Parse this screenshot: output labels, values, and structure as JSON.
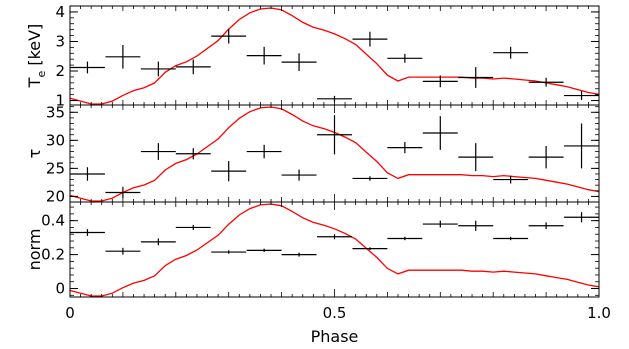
{
  "chart_data": {
    "type": "scatter",
    "shared_x": {
      "label": "Phase",
      "lim": [
        0,
        1.0
      ],
      "ticks": [
        0,
        0.5,
        1.0
      ],
      "tick_labels": [
        "0",
        "0.5",
        "1.0"
      ]
    },
    "overlay_color": "#ff0000",
    "marker_color": "#000000",
    "panels": [
      {
        "ylabel": "T",
        "ylabel_sub": "e",
        "ylabel_rest": " [keV]",
        "ylim": [
          0.85,
          4.2
        ],
        "yticks": [
          1,
          2,
          3,
          4
        ],
        "ytick_labels": [
          "1",
          "2",
          "3",
          "4"
        ],
        "points": [
          {
            "x": 0.033,
            "xerr": 0.033,
            "y": 2.12,
            "yerr": 0.2
          },
          {
            "x": 0.1,
            "xerr": 0.033,
            "y": 2.48,
            "yerr": 0.4
          },
          {
            "x": 0.167,
            "xerr": 0.033,
            "y": 2.07,
            "yerr": 0.25
          },
          {
            "x": 0.233,
            "xerr": 0.033,
            "y": 2.14,
            "yerr": 0.25
          },
          {
            "x": 0.3,
            "xerr": 0.033,
            "y": 3.18,
            "yerr": 0.25
          },
          {
            "x": 0.367,
            "xerr": 0.033,
            "y": 2.52,
            "yerr": 0.3
          },
          {
            "x": 0.433,
            "xerr": 0.033,
            "y": 2.3,
            "yerr": 0.3
          },
          {
            "x": 0.5,
            "xerr": 0.033,
            "y": 1.06,
            "yerr": 0.1
          },
          {
            "x": 0.567,
            "xerr": 0.033,
            "y": 3.08,
            "yerr": 0.25
          },
          {
            "x": 0.633,
            "xerr": 0.033,
            "y": 2.43,
            "yerr": 0.15
          },
          {
            "x": 0.7,
            "xerr": 0.033,
            "y": 1.65,
            "yerr": 0.2
          },
          {
            "x": 0.767,
            "xerr": 0.033,
            "y": 1.78,
            "yerr": 0.35
          },
          {
            "x": 0.833,
            "xerr": 0.033,
            "y": 2.62,
            "yerr": 0.2
          },
          {
            "x": 0.9,
            "xerr": 0.033,
            "y": 1.62,
            "yerr": 0.15
          },
          {
            "x": 0.967,
            "xerr": 0.033,
            "y": 1.17,
            "yerr": 0.15
          }
        ]
      },
      {
        "ylabel": "τ",
        "ylim": [
          19.0,
          36.3
        ],
        "yticks": [
          20,
          25,
          30,
          35
        ],
        "ytick_labels": [
          "20",
          "25",
          "30",
          "35"
        ],
        "points": [
          {
            "x": 0.033,
            "xerr": 0.033,
            "y": 24.0,
            "yerr": 1.2
          },
          {
            "x": 0.1,
            "xerr": 0.033,
            "y": 20.7,
            "yerr": 1.0
          },
          {
            "x": 0.167,
            "xerr": 0.033,
            "y": 28.0,
            "yerr": 1.5
          },
          {
            "x": 0.233,
            "xerr": 0.033,
            "y": 27.6,
            "yerr": 1.0
          },
          {
            "x": 0.3,
            "xerr": 0.033,
            "y": 24.5,
            "yerr": 1.8
          },
          {
            "x": 0.367,
            "xerr": 0.033,
            "y": 28.0,
            "yerr": 1.2
          },
          {
            "x": 0.433,
            "xerr": 0.033,
            "y": 23.8,
            "yerr": 1.0
          },
          {
            "x": 0.5,
            "xerr": 0.033,
            "y": 31.0,
            "yerr": 3.5
          },
          {
            "x": 0.567,
            "xerr": 0.033,
            "y": 23.2,
            "yerr": 0.4
          },
          {
            "x": 0.633,
            "xerr": 0.033,
            "y": 28.7,
            "yerr": 1.0
          },
          {
            "x": 0.7,
            "xerr": 0.033,
            "y": 31.3,
            "yerr": 3.0
          },
          {
            "x": 0.767,
            "xerr": 0.033,
            "y": 27.0,
            "yerr": 2.5
          },
          {
            "x": 0.833,
            "xerr": 0.033,
            "y": 23.0,
            "yerr": 0.7
          },
          {
            "x": 0.9,
            "xerr": 0.033,
            "y": 27.0,
            "yerr": 2.0
          },
          {
            "x": 0.967,
            "xerr": 0.033,
            "y": 29.0,
            "yerr": 4.0
          }
        ]
      },
      {
        "ylabel": "norm",
        "ylim": [
          -0.05,
          0.51
        ],
        "yticks": [
          0,
          0.2,
          0.4
        ],
        "ytick_labels": [
          "0",
          "0.2",
          "0.4"
        ],
        "points": [
          {
            "x": 0.033,
            "xerr": 0.033,
            "y": 0.33,
            "yerr": 0.02
          },
          {
            "x": 0.1,
            "xerr": 0.033,
            "y": 0.22,
            "yerr": 0.02
          },
          {
            "x": 0.167,
            "xerr": 0.033,
            "y": 0.275,
            "yerr": 0.02
          },
          {
            "x": 0.233,
            "xerr": 0.033,
            "y": 0.36,
            "yerr": 0.015
          },
          {
            "x": 0.3,
            "xerr": 0.033,
            "y": 0.215,
            "yerr": 0.01
          },
          {
            "x": 0.367,
            "xerr": 0.033,
            "y": 0.225,
            "yerr": 0.01
          },
          {
            "x": 0.433,
            "xerr": 0.033,
            "y": 0.2,
            "yerr": 0.012
          },
          {
            "x": 0.5,
            "xerr": 0.033,
            "y": 0.305,
            "yerr": 0.015
          },
          {
            "x": 0.567,
            "xerr": 0.033,
            "y": 0.235,
            "yerr": 0.008
          },
          {
            "x": 0.633,
            "xerr": 0.033,
            "y": 0.295,
            "yerr": 0.01
          },
          {
            "x": 0.7,
            "xerr": 0.033,
            "y": 0.38,
            "yerr": 0.02
          },
          {
            "x": 0.767,
            "xerr": 0.033,
            "y": 0.37,
            "yerr": 0.03
          },
          {
            "x": 0.833,
            "xerr": 0.033,
            "y": 0.295,
            "yerr": 0.01
          },
          {
            "x": 0.9,
            "xerr": 0.033,
            "y": 0.37,
            "yerr": 0.02
          },
          {
            "x": 0.967,
            "xerr": 0.033,
            "y": 0.42,
            "yerr": 0.03
          }
        ]
      }
    ],
    "overlay_curve": {
      "note": "normalized light-curve shape, 0 = min, 1 = max, same in every panel",
      "x": [
        0.0,
        0.02,
        0.04,
        0.06,
        0.08,
        0.1,
        0.12,
        0.14,
        0.16,
        0.18,
        0.2,
        0.22,
        0.24,
        0.26,
        0.28,
        0.3,
        0.32,
        0.34,
        0.36,
        0.38,
        0.4,
        0.42,
        0.44,
        0.46,
        0.48,
        0.5,
        0.52,
        0.54,
        0.56,
        0.58,
        0.6,
        0.62,
        0.64,
        0.66,
        0.68,
        0.7,
        0.72,
        0.74,
        0.76,
        0.78,
        0.8,
        0.82,
        0.84,
        0.86,
        0.88,
        0.9,
        0.92,
        0.94,
        0.96,
        0.98,
        1.0
      ],
      "y": [
        0.06,
        0.03,
        0.0,
        0.0,
        0.03,
        0.09,
        0.14,
        0.17,
        0.22,
        0.33,
        0.4,
        0.44,
        0.5,
        0.58,
        0.66,
        0.78,
        0.88,
        0.95,
        0.99,
        1.0,
        0.98,
        0.92,
        0.85,
        0.8,
        0.77,
        0.73,
        0.68,
        0.62,
        0.52,
        0.42,
        0.3,
        0.24,
        0.28,
        0.28,
        0.28,
        0.28,
        0.28,
        0.28,
        0.27,
        0.27,
        0.26,
        0.27,
        0.26,
        0.25,
        0.24,
        0.22,
        0.2,
        0.18,
        0.15,
        0.12,
        0.1
      ]
    }
  }
}
